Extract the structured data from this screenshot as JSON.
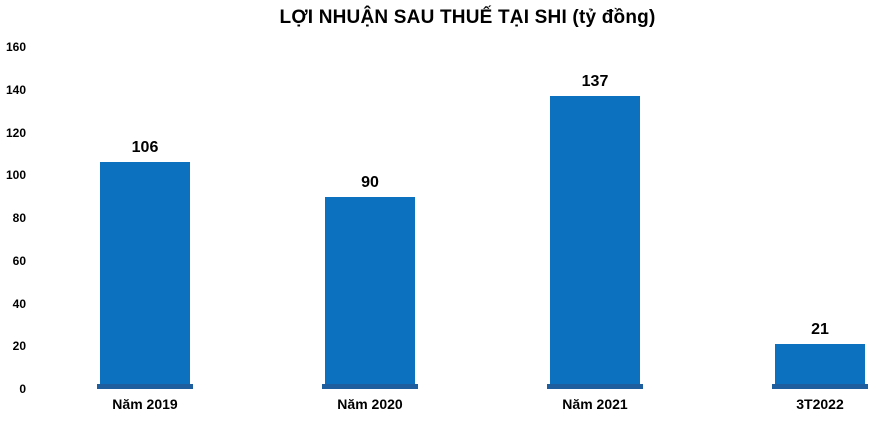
{
  "title": "LỢI NHUẬN SAU THUẾ TẠI SHI (tỷ đồng)",
  "colors": {
    "background": "#FFFFFF",
    "bar_fill": "#0C72BF",
    "bar_base_edge": "#1F5E9E",
    "text": "#000000"
  },
  "y_axis": {
    "ticks": [
      "160",
      "140",
      "120",
      "100",
      "80",
      "60",
      "40",
      "20",
      "0"
    ]
  },
  "chart_data": {
    "type": "bar",
    "title": "LỢI NHUẬN SAU THUẾ TẠI SHI (tỷ đồng)",
    "categories": [
      "Năm 2019",
      "Năm 2020",
      "Năm 2021",
      "3T2022"
    ],
    "values": [
      106,
      90,
      137,
      21
    ],
    "data_labels": [
      "106",
      "90",
      "137",
      "21"
    ],
    "xlabel": "",
    "ylabel": "",
    "ylim": [
      0,
      160
    ],
    "y_tick_step": 20,
    "grid": false,
    "legend": false,
    "bar_color": "#0C72BF"
  }
}
